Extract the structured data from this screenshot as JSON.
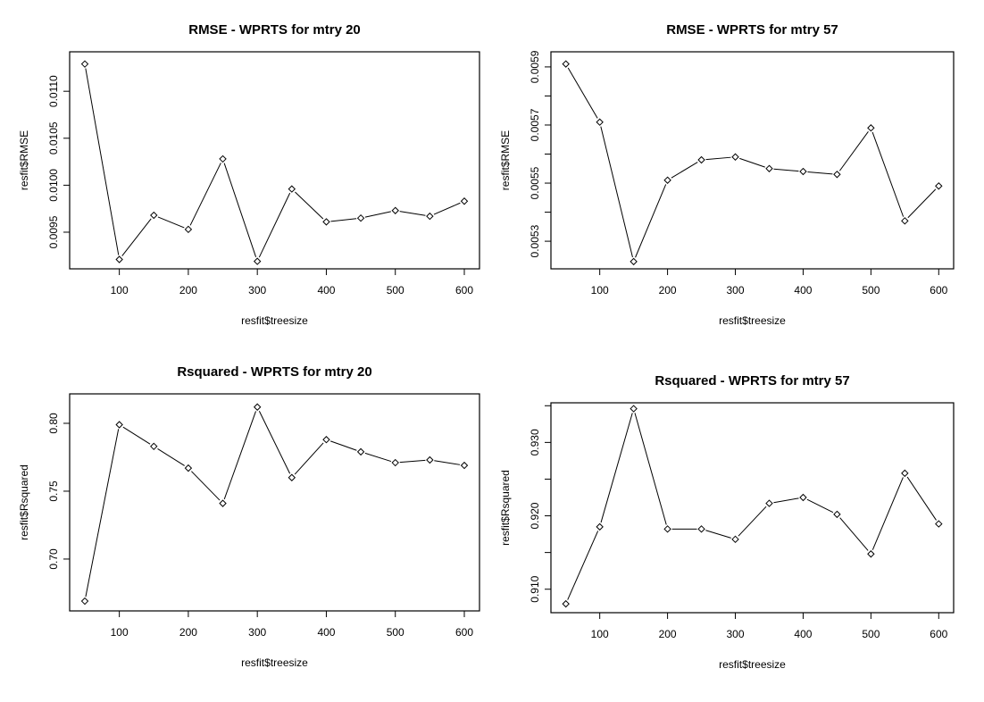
{
  "chart_data": [
    {
      "type": "line",
      "title": "RMSE - WPRTS for mtry 20",
      "xlabel": "resfit$treesize",
      "ylabel": "resfit$RMSE",
      "x": [
        50,
        100,
        150,
        200,
        250,
        300,
        350,
        400,
        450,
        500,
        550,
        600
      ],
      "y": [
        0.01129,
        0.00921,
        0.00968,
        0.00953,
        0.01028,
        0.00919,
        0.00996,
        0.00961,
        0.00965,
        0.00973,
        0.00967,
        0.00983
      ],
      "xlim": [
        28,
        622
      ],
      "ylim": [
        0.00911,
        0.01142
      ],
      "xticks": [
        {
          "v": 100,
          "label": "100"
        },
        {
          "v": 200,
          "label": "200"
        },
        {
          "v": 300,
          "label": "300"
        },
        {
          "v": 400,
          "label": "400"
        },
        {
          "v": 500,
          "label": "500"
        },
        {
          "v": 600,
          "label": "600"
        }
      ],
      "yticks": [
        {
          "v": 0.0095,
          "label": "0.0095"
        },
        {
          "v": 0.01,
          "label": "0.0100"
        },
        {
          "v": 0.0105,
          "label": "0.0105"
        },
        {
          "v": 0.011,
          "label": "0.0110"
        }
      ]
    },
    {
      "type": "line",
      "title": "RMSE - WPRTS for mtry 57",
      "xlabel": "resfit$treesize",
      "ylabel": "resfit$RMSE",
      "x": [
        50,
        100,
        150,
        200,
        250,
        300,
        350,
        400,
        450,
        500,
        550,
        600
      ],
      "y": [
        0.00591,
        0.00571,
        0.00523,
        0.00551,
        0.00558,
        0.00559,
        0.00555,
        0.00554,
        0.00553,
        0.00569,
        0.00537,
        0.00549
      ],
      "xlim": [
        28,
        622
      ],
      "ylim": [
        0.005205,
        0.005952
      ],
      "xticks": [
        {
          "v": 100,
          "label": "100"
        },
        {
          "v": 200,
          "label": "200"
        },
        {
          "v": 300,
          "label": "300"
        },
        {
          "v": 400,
          "label": "400"
        },
        {
          "v": 500,
          "label": "500"
        },
        {
          "v": 600,
          "label": "600"
        }
      ],
      "yticks": [
        {
          "v": 0.0053,
          "label": "0.0053"
        },
        {
          "v": 0.0054,
          "label": ""
        },
        {
          "v": 0.0055,
          "label": "0.0055"
        },
        {
          "v": 0.0056,
          "label": ""
        },
        {
          "v": 0.0057,
          "label": "0.0057"
        },
        {
          "v": 0.0058,
          "label": ""
        },
        {
          "v": 0.0059,
          "label": "0.0059"
        }
      ]
    },
    {
      "type": "line",
      "title": "Rsquared - WPRTS for mtry 20",
      "xlabel": "resfit$treesize",
      "ylabel": "resfit$Rsquared",
      "x": [
        50,
        100,
        150,
        200,
        250,
        300,
        350,
        400,
        450,
        500,
        550,
        600
      ],
      "y": [
        0.669,
        0.799,
        0.783,
        0.767,
        0.741,
        0.812,
        0.76,
        0.788,
        0.779,
        0.771,
        0.773,
        0.769
      ],
      "xlim": [
        28,
        622
      ],
      "ylim": [
        0.6618,
        0.8217
      ],
      "xticks": [
        {
          "v": 100,
          "label": "100"
        },
        {
          "v": 200,
          "label": "200"
        },
        {
          "v": 300,
          "label": "300"
        },
        {
          "v": 400,
          "label": "400"
        },
        {
          "v": 500,
          "label": "500"
        },
        {
          "v": 600,
          "label": "600"
        }
      ],
      "yticks": [
        {
          "v": 0.7,
          "label": "0.70"
        },
        {
          "v": 0.75,
          "label": "0.75"
        },
        {
          "v": 0.8,
          "label": "0.80"
        }
      ]
    },
    {
      "type": "line",
      "title": "Rsquared - WPRTS for mtry 57",
      "xlabel": "resfit$treesize",
      "ylabel": "resfit$Rsquared",
      "x": [
        50,
        100,
        150,
        200,
        250,
        300,
        350,
        400,
        450,
        500,
        550,
        600
      ],
      "y": [
        0.908,
        0.9185,
        0.9346,
        0.9182,
        0.9182,
        0.9168,
        0.9217,
        0.9225,
        0.9202,
        0.9148,
        0.9258,
        0.9189
      ],
      "xlim": [
        28,
        622
      ],
      "ylim": [
        0.9068,
        0.9354
      ],
      "xticks": [
        {
          "v": 100,
          "label": "100"
        },
        {
          "v": 200,
          "label": "200"
        },
        {
          "v": 300,
          "label": "300"
        },
        {
          "v": 400,
          "label": "400"
        },
        {
          "v": 500,
          "label": "500"
        },
        {
          "v": 600,
          "label": "600"
        }
      ],
      "yticks": [
        {
          "v": 0.91,
          "label": "0.910"
        },
        {
          "v": 0.915,
          "label": ""
        },
        {
          "v": 0.92,
          "label": "0.920"
        },
        {
          "v": 0.925,
          "label": ""
        },
        {
          "v": 0.93,
          "label": "0.930"
        },
        {
          "v": 0.935,
          "label": ""
        }
      ]
    }
  ]
}
